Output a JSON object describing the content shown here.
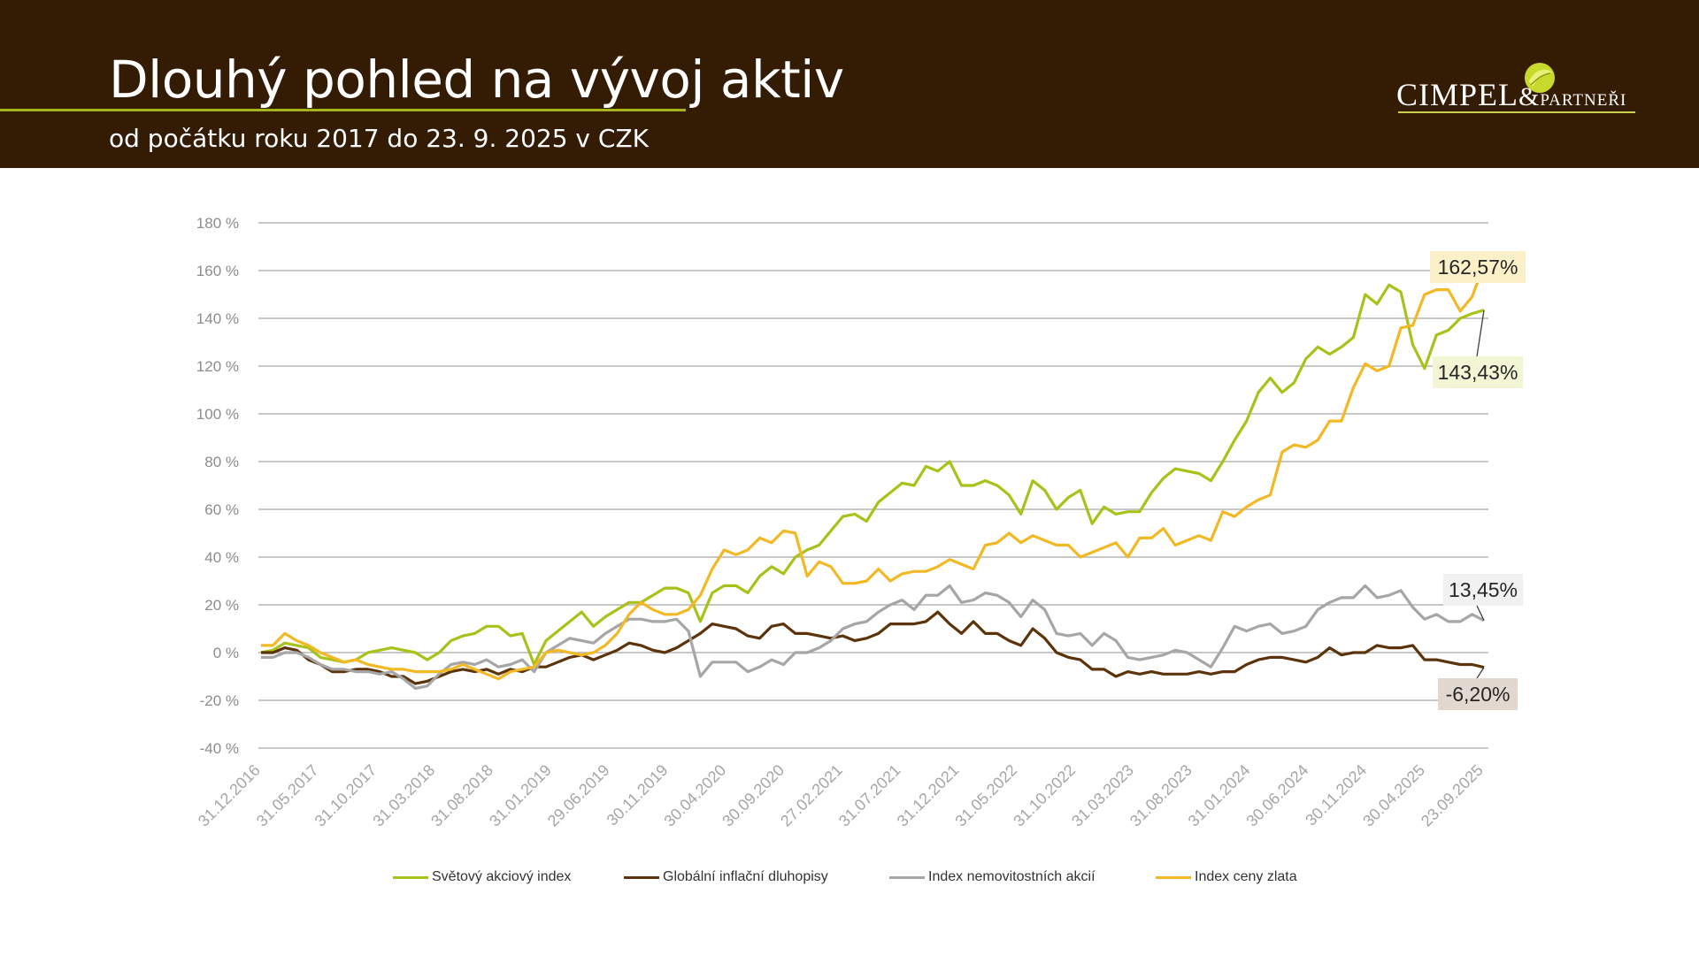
{
  "header": {
    "title": "Dlouhý pohled na vývoj aktiv",
    "subtitle": "od počátku roku 2017 do 23. 9. 2025 v CZK",
    "logo_main": "CIMPEL",
    "logo_amp": "&",
    "logo_small": "PARTNEŘI",
    "logo_icon": "leaf-icon"
  },
  "colors": {
    "header_bg": "#331b04",
    "accent_line": "#a7b31c",
    "grid": "#a6a6a6"
  },
  "chart_data": {
    "type": "line",
    "ylim": [
      -40,
      180
    ],
    "yticks": [
      -40,
      -20,
      0,
      20,
      40,
      60,
      80,
      100,
      120,
      140,
      160,
      180
    ],
    "ytick_labels": [
      "-40 %",
      "-20 %",
      "0 %",
      "20 %",
      "40 %",
      "60 %",
      "80 %",
      "100 %",
      "120 %",
      "140 %",
      "160 %",
      "180 %"
    ],
    "x_tick_labels": [
      "31.12.2016",
      "31.05.2017",
      "31.10.2017",
      "31.03.2018",
      "31.08.2018",
      "31.01.2019",
      "29.06.2019",
      "30.11.2019",
      "30.04.2020",
      "30.09.2020",
      "27.02.2021",
      "31.07.2021",
      "31.12.2021",
      "31.05.2022",
      "31.10.2022",
      "31.03.2023",
      "31.08.2023",
      "31.01.2024",
      "30.06.2024",
      "30.11.2024",
      "30.04.2025",
      "23.09.2025"
    ],
    "grid": true,
    "legend_position": "bottom",
    "series": [
      {
        "name": "Světový akciový index",
        "color": "#a9c21a",
        "values": [
          0,
          1,
          4,
          3,
          2,
          -2,
          -3,
          -4,
          -3,
          0,
          1,
          2,
          1,
          0,
          -3,
          0,
          5,
          7,
          8,
          11,
          11,
          7,
          8,
          -5,
          5,
          9,
          13,
          17,
          11,
          15,
          18,
          21,
          21,
          24,
          27,
          27,
          25,
          13,
          25,
          28,
          28,
          25,
          32,
          36,
          33,
          40,
          43,
          45,
          51,
          57,
          58,
          55,
          63,
          67,
          71,
          70,
          78,
          76,
          80,
          70,
          70,
          72,
          70,
          66,
          58,
          72,
          68,
          60,
          65,
          68,
          54,
          61,
          58,
          59,
          59,
          67,
          73,
          77,
          76,
          75,
          72,
          80,
          89,
          97,
          109,
          115,
          109,
          113,
          123,
          128,
          125,
          128,
          132,
          150,
          146,
          154,
          151,
          129,
          119,
          133,
          135,
          140,
          142,
          143.43
        ],
        "end_label": "143,43%",
        "end_label_bg": "#f3f6d5"
      },
      {
        "name": "Globální inflační dluhopisy",
        "color": "#5c330a",
        "values": [
          0,
          0,
          2,
          1,
          -3,
          -5,
          -8,
          -8,
          -7,
          -7,
          -8,
          -10,
          -10,
          -13,
          -12,
          -10,
          -8,
          -7,
          -8,
          -7,
          -9,
          -7,
          -8,
          -6,
          -6,
          -4,
          -2,
          -1,
          -3,
          -1,
          1,
          4,
          3,
          1,
          0,
          2,
          5,
          8,
          12,
          11,
          10,
          7,
          6,
          11,
          12,
          8,
          8,
          7,
          6,
          7,
          5,
          6,
          8,
          12,
          12,
          12,
          13,
          17,
          12,
          8,
          13,
          8,
          8,
          5,
          3,
          10,
          6,
          0,
          -2,
          -3,
          -7,
          -7,
          -10,
          -8,
          -9,
          -8,
          -9,
          -9,
          -9,
          -8,
          -9,
          -8,
          -8,
          -5,
          -3,
          -2,
          -2,
          -3,
          -4,
          -2,
          2,
          -1,
          0,
          0,
          3,
          2,
          2,
          3,
          -3,
          -3,
          -4,
          -5,
          -5,
          -6.2
        ],
        "end_label": "-6,20%",
        "end_label_bg": "#e2d8d0"
      },
      {
        "name": "Index nemovitostních akcií",
        "color": "#a6a6a6",
        "values": [
          -2,
          -2,
          0,
          0,
          -2,
          -5,
          -7,
          -7,
          -8,
          -8,
          -9,
          -8,
          -11,
          -15,
          -14,
          -9,
          -5,
          -4,
          -5,
          -3,
          -6,
          -5,
          -3,
          -8,
          0,
          3,
          6,
          5,
          4,
          8,
          11,
          14,
          14,
          13,
          13,
          14,
          9,
          -10,
          -4,
          -4,
          -4,
          -8,
          -6,
          -3,
          -5,
          0,
          0,
          2,
          5,
          10,
          12,
          13,
          17,
          20,
          22,
          18,
          24,
          24,
          28,
          21,
          22,
          25,
          24,
          21,
          15,
          22,
          18,
          8,
          7,
          8,
          3,
          8,
          5,
          -2,
          -3,
          -2,
          -1,
          1,
          0,
          -3,
          -6,
          2,
          11,
          9,
          11,
          12,
          8,
          9,
          11,
          18,
          21,
          23,
          23,
          28,
          23,
          24,
          26,
          19,
          14,
          16,
          13,
          13,
          16,
          13.45
        ],
        "end_label": "13,45%",
        "end_label_bg": "#f1f1f1"
      },
      {
        "name": "Index ceny zlata",
        "color": "#f2b925",
        "values": [
          3,
          3,
          8,
          5,
          3,
          0,
          -2,
          -4,
          -3,
          -5,
          -6,
          -7,
          -7,
          -8,
          -8,
          -8,
          -7,
          -5,
          -7,
          -9,
          -11,
          -8,
          -7,
          -6,
          0,
          1,
          0,
          -1,
          0,
          3,
          8,
          16,
          21,
          18,
          16,
          16,
          18,
          24,
          35,
          43,
          41,
          43,
          48,
          46,
          51,
          50,
          32,
          38,
          36,
          29,
          29,
          30,
          35,
          30,
          33,
          34,
          34,
          36,
          39,
          37,
          35,
          45,
          46,
          50,
          46,
          49,
          47,
          45,
          45,
          40,
          42,
          44,
          46,
          40,
          48,
          48,
          52,
          45,
          47,
          49,
          47,
          59,
          57,
          61,
          64,
          66,
          84,
          87,
          86,
          89,
          97,
          97,
          111,
          121,
          118,
          120,
          136,
          137,
          150,
          152,
          152,
          143,
          149,
          162.57
        ],
        "end_label": "162,57%",
        "end_label_bg": "#fcf0c8"
      }
    ]
  }
}
